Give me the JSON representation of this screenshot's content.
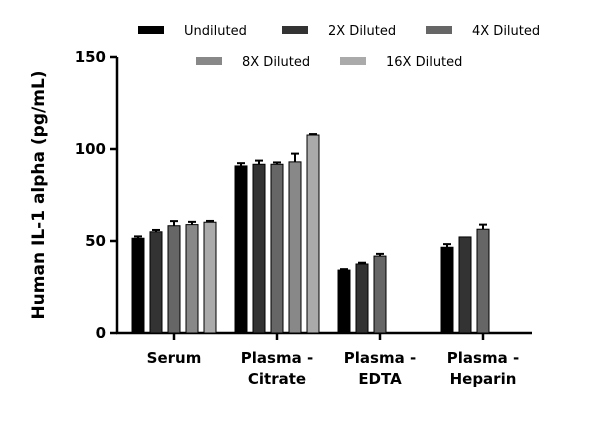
{
  "chart_data": {
    "type": "bar",
    "title": "",
    "xlabel": "",
    "ylabel": "Human IL-1 alpha (pg/mL)",
    "ylim": [
      0,
      150
    ],
    "yticks": [
      0,
      50,
      100,
      150
    ],
    "grid": false,
    "legend_position": "top",
    "categories": [
      [
        "Serum"
      ],
      [
        "Plasma -",
        "Citrate"
      ],
      [
        "Plasma -",
        "EDTA"
      ],
      [
        "Plasma -",
        "Heparin"
      ]
    ],
    "series": [
      {
        "name": "Undiluted",
        "color": "#000000",
        "values": [
          51.5,
          90.8,
          34.2,
          46.6
        ],
        "errors": [
          1,
          1.5,
          0.5,
          1.7
        ]
      },
      {
        "name": "2X Diluted",
        "color": "#333333",
        "values": [
          55,
          91.7,
          37.5,
          52.2
        ],
        "errors": [
          1,
          2,
          0.7,
          0
        ]
      },
      {
        "name": "4X Diluted",
        "color": "#666666",
        "values": [
          58.3,
          91.7,
          41.8,
          56.4
        ],
        "errors": [
          2.5,
          1,
          1.2,
          2.5
        ]
      },
      {
        "name": "8X Diluted",
        "color": "#888888",
        "values": [
          58.9,
          93,
          null,
          null
        ],
        "errors": [
          1.5,
          4.5,
          null,
          null
        ]
      },
      {
        "name": "16X Diluted",
        "color": "#aaaaaa",
        "values": [
          60.2,
          107.6,
          null,
          null
        ],
        "errors": [
          0.7,
          0.5,
          null,
          null
        ]
      }
    ]
  }
}
